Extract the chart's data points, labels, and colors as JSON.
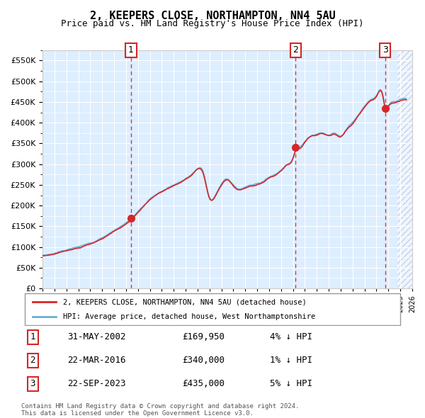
{
  "title": "2, KEEPERS CLOSE, NORTHAMPTON, NN4 5AU",
  "subtitle": "Price paid vs. HM Land Registry's House Price Index (HPI)",
  "legend_line1": "2, KEEPERS CLOSE, NORTHAMPTON, NN4 5AU (detached house)",
  "legend_line2": "HPI: Average price, detached house, West Northamptonshire",
  "purchase_events": [
    {
      "label": "1",
      "date_str": "31-MAY-2002",
      "price": 169950,
      "pct": "4%",
      "dir": "↓",
      "x_year": 2002.42
    },
    {
      "label": "2",
      "date_str": "22-MAR-2016",
      "price": 340000,
      "pct": "1%",
      "dir": "↓",
      "x_year": 2016.22
    },
    {
      "label": "3",
      "date_str": "22-SEP-2023",
      "price": 435000,
      "pct": "5%",
      "dir": "↓",
      "x_year": 2023.72
    }
  ],
  "footer1": "Contains HM Land Registry data © Crown copyright and database right 2024.",
  "footer2": "This data is licensed under the Open Government Licence v3.0.",
  "ylim": [
    0,
    575000
  ],
  "xlim_start": 1995.0,
  "xlim_end": 2026.0,
  "hpi_color": "#6baed6",
  "price_color": "#d62728",
  "bg_color": "#ddeeff",
  "grid_color": "#ffffff",
  "dashed_color": "#d62728",
  "future_hatch_color": "#aaaacc",
  "future_start": 2024.75
}
